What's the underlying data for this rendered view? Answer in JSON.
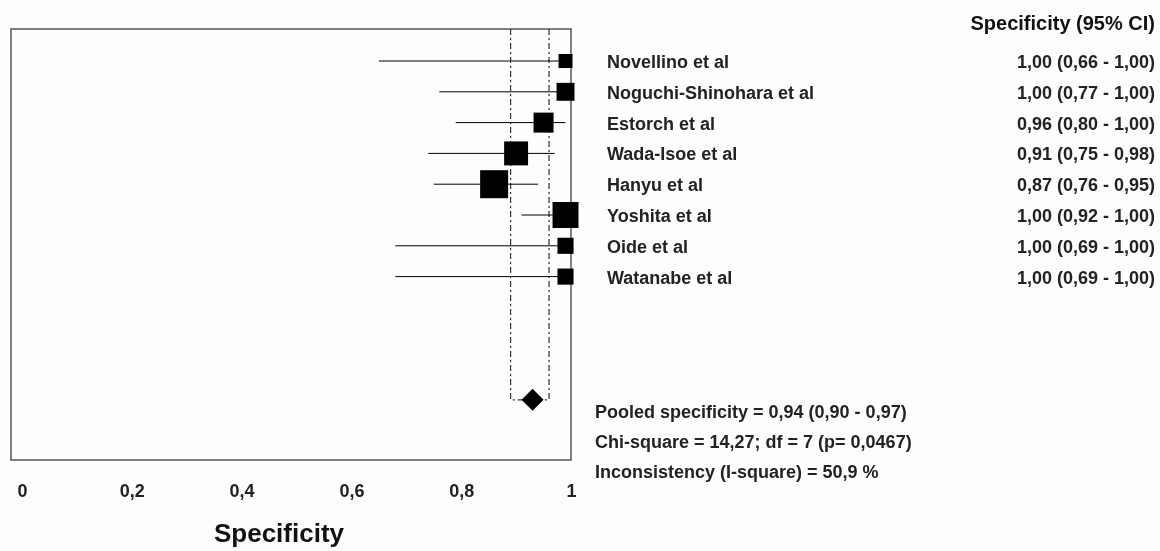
{
  "chart_data": {
    "type": "scatter",
    "orientation": "horizontal",
    "xlabel": "Specificity",
    "categories": [
      "Novellino et al",
      "Noguchi-Shinohara et al",
      "Estorch et al",
      "Wada-Isoe et al",
      "Hanyu et al",
      "Yoshita et al",
      "Oide et al",
      "Watanabe et al",
      null,
      null,
      null,
      null
    ],
    "xlim": [
      -0.01,
      1.01
    ],
    "xticks": [
      0,
      {
        "value": 0.2,
        "label": "0,2"
      },
      {
        "value": 0.4,
        "label": "0,4"
      },
      {
        "value": 0.6,
        "label": "0,6"
      },
      {
        "value": 0.8,
        "label": "0,8"
      },
      1
    ],
    "series": [
      {
        "marker": "square",
        "color": "#000000",
        "values": [
          1.0,
          1.0,
          0.96,
          0.91,
          0.87,
          1.0,
          1.0,
          1.0,
          null,
          null,
          null,
          null
        ],
        "errors": [
          [
            0.66,
            1.0
          ],
          [
            0.77,
            1.0
          ],
          [
            0.8,
            1.0
          ],
          [
            0.75,
            0.98
          ],
          [
            0.76,
            0.95
          ],
          [
            0.92,
            1.0
          ],
          [
            0.69,
            1.0
          ],
          [
            0.69,
            1.0
          ],
          null,
          null,
          null,
          null
        ],
        "sizes": [
          0.25,
          0.41,
          0.51,
          0.73,
          1,
          0.86,
          0.33,
          0.33,
          null,
          null,
          null,
          null
        ],
        "value_labels": [
          "1,00  (0,66 - 1,00)",
          "1,00  (0,77 - 1,00)",
          "0,96  (0,80 - 1,00)",
          "0,91  (0,75 - 0,98)",
          "0,87  (0,76 - 0,95)",
          "1,00  (0,92 - 1,00)",
          "1,00  (0,69 - 1,00)",
          "1,00  (0,69 - 1,00)",
          null,
          null,
          null,
          null
        ]
      },
      {
        "marker": "diamond",
        "color": "#000000",
        "values": [
          null,
          null,
          null,
          null,
          null,
          null,
          null,
          null,
          null,
          null,
          null,
          0.94
        ]
      }
    ],
    "ref_lines": [
      {
        "axis": "x",
        "value": 0.9,
        "line_style": "dashed"
      },
      {
        "axis": "x",
        "value": 0.97,
        "line_style": "dashed"
      }
    ],
    "annotations": [
      "Specificity  (95% CI)",
      "Pooled specificity = 0,94 (0,90 - 0,97)",
      "Chi-square = 14,27; df = 7 (p= 0,0467)",
      "Inconsistency (I-square) = 50,9 %"
    ],
    "grid": false
  }
}
